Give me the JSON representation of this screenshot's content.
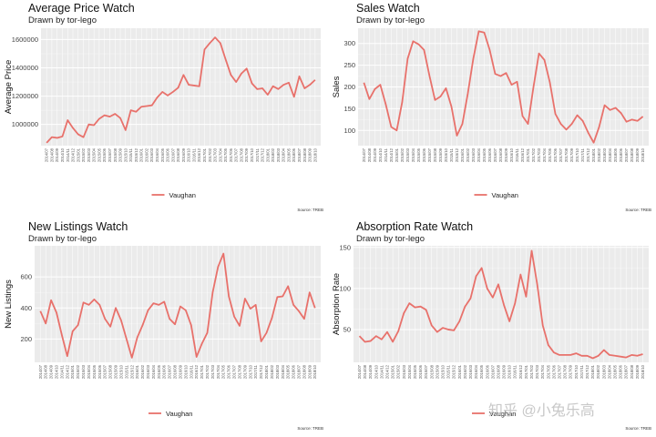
{
  "watermark": "知乎 @小兔乐高",
  "x_labels": [
    "2014/07",
    "2014/08",
    "2014/09",
    "2014/10",
    "2014/11",
    "2014/12",
    "2015/01",
    "2015/02",
    "2015/03",
    "2015/04",
    "2015/05",
    "2015/06",
    "2015/07",
    "2015/08",
    "2015/09",
    "2015/10",
    "2015/11",
    "2015/12",
    "2016/01",
    "2016/02",
    "2016/03",
    "2016/04",
    "2016/05",
    "2016/06",
    "2016/07",
    "2016/08",
    "2016/09",
    "2016/10",
    "2016/11",
    "2016/12",
    "2017/01",
    "2017/02",
    "2017/03",
    "2017/04",
    "2017/05",
    "2017/06",
    "2017/07",
    "2017/08",
    "2017/09",
    "2017/10",
    "2017/11",
    "2017/12",
    "2018/01",
    "2018/02",
    "2018/03",
    "2018/04",
    "2018/05",
    "2018/06",
    "2018/07",
    "2018/08",
    "2018/09",
    "2018/10"
  ],
  "chart_data": [
    {
      "type": "line",
      "title": "Average Price Watch",
      "subtitle": "Drawn by tor-lego",
      "xlabel": "",
      "ylabel": "Average Price",
      "ylim": [
        850000,
        1680000
      ],
      "yticks": [
        1000000,
        1200000,
        1400000,
        1600000
      ],
      "ytick_labels": [
        "1000000",
        "1200000",
        "1400000",
        "1600000"
      ],
      "legend": "Vaughan",
      "source": "Source: TREB",
      "series": [
        {
          "name": "Vaughan",
          "values": [
            870000,
            910000,
            905000,
            915000,
            1030000,
            975000,
            930000,
            910000,
            1000000,
            995000,
            1040000,
            1065000,
            1055000,
            1075000,
            1045000,
            960000,
            1100000,
            1090000,
            1125000,
            1130000,
            1135000,
            1190000,
            1230000,
            1205000,
            1230000,
            1260000,
            1350000,
            1280000,
            1275000,
            1270000,
            1530000,
            1575000,
            1615000,
            1575000,
            1460000,
            1350000,
            1300000,
            1360000,
            1395000,
            1290000,
            1250000,
            1255000,
            1210000,
            1270000,
            1250000,
            1280000,
            1295000,
            1195000,
            1340000,
            1255000,
            1280000,
            1315000
          ]
        }
      ]
    },
    {
      "type": "line",
      "title": "Sales Watch",
      "subtitle": "Drawn by tor-lego",
      "xlabel": "",
      "ylabel": "Sales",
      "ylim": [
        65,
        335
      ],
      "yticks": [
        100,
        150,
        200,
        250,
        300
      ],
      "ytick_labels": [
        "100",
        "150",
        "200",
        "250",
        "300"
      ],
      "legend": "Vaughan",
      "source": "Source: TREB",
      "series": [
        {
          "name": "Vaughan",
          "values": [
            210,
            172,
            195,
            205,
            160,
            108,
            100,
            165,
            265,
            305,
            298,
            285,
            225,
            170,
            178,
            197,
            155,
            88,
            115,
            185,
            265,
            328,
            325,
            285,
            230,
            225,
            232,
            205,
            212,
            133,
            115,
            200,
            277,
            262,
            210,
            138,
            115,
            102,
            115,
            135,
            122,
            95,
            72,
            108,
            158,
            147,
            152,
            140,
            120,
            125,
            122,
            132
          ]
        }
      ]
    },
    {
      "type": "line",
      "title": "New Listings Watch",
      "subtitle": "Drawn by tor-lego",
      "xlabel": "",
      "ylabel": "New Listings",
      "ylim": [
        50,
        800
      ],
      "yticks": [
        200,
        400,
        600
      ],
      "ytick_labels": [
        "200",
        "400",
        "600"
      ],
      "legend": "Vaughan",
      "source": "Source: TREB",
      "series": [
        {
          "name": "Vaughan",
          "values": [
            380,
            300,
            450,
            370,
            225,
            90,
            250,
            290,
            435,
            420,
            455,
            420,
            330,
            280,
            400,
            320,
            200,
            80,
            210,
            290,
            385,
            430,
            420,
            440,
            330,
            295,
            410,
            385,
            290,
            85,
            170,
            240,
            500,
            665,
            750,
            475,
            345,
            285,
            460,
            395,
            420,
            185,
            240,
            335,
            470,
            475,
            540,
            420,
            380,
            330,
            500,
            400
          ]
        }
      ]
    },
    {
      "type": "line",
      "title": "Absorption Rate Watch",
      "subtitle": "Drawn by tor-lego",
      "xlabel": "",
      "ylabel": "Absorption Rate",
      "ylim": [
        10,
        152
      ],
      "yticks": [
        50,
        100,
        150
      ],
      "ytick_labels": [
        "50",
        "100",
        "150"
      ],
      "legend": "Vaughan",
      "source": "Source: TREB",
      "series": [
        {
          "name": "Vaughan",
          "values": [
            42,
            35,
            36,
            42,
            38,
            47,
            35,
            48,
            70,
            82,
            77,
            78,
            74,
            55,
            47,
            52,
            50,
            49,
            60,
            78,
            88,
            115,
            125,
            100,
            89,
            105,
            80,
            60,
            82,
            117,
            90,
            146,
            105,
            55,
            31,
            22,
            19,
            19,
            19,
            21,
            18,
            18,
            15,
            18,
            25,
            19,
            18,
            17,
            16,
            19,
            18,
            20
          ]
        }
      ]
    }
  ]
}
